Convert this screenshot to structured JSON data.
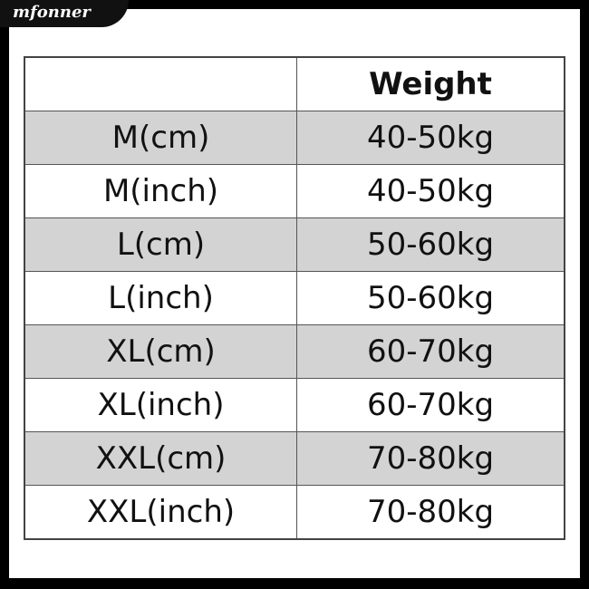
{
  "logo": "mfonner",
  "table": {
    "headers": [
      "",
      "Weight"
    ],
    "rows": [
      [
        "M(cm)",
        "40-50kg"
      ],
      [
        "M(inch)",
        "40-50kg"
      ],
      [
        "L(cm)",
        "50-60kg"
      ],
      [
        "L(inch)",
        "50-60kg"
      ],
      [
        "XL(cm)",
        "60-70kg"
      ],
      [
        "XL(inch)",
        "60-70kg"
      ],
      [
        "XXL(cm)",
        "70-80kg"
      ],
      [
        "XXL(inch)",
        "70-80kg"
      ]
    ]
  },
  "colors": {
    "shaded_row": "#d3d3d3",
    "frame": "#000000"
  }
}
